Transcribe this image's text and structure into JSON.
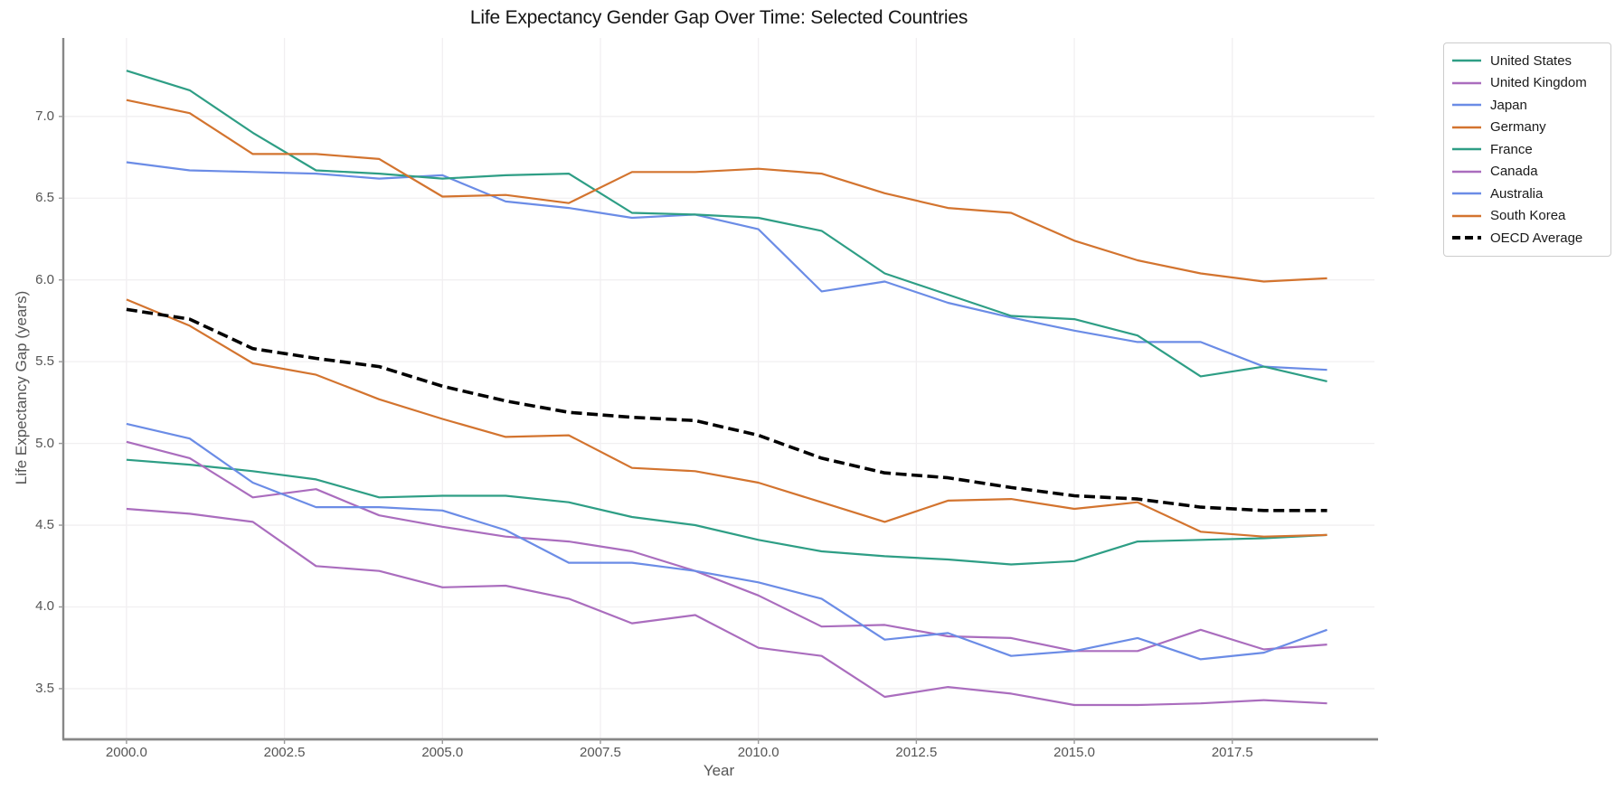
{
  "chart_data": {
    "type": "line",
    "title": "Life Expectancy Gender Gap Over Time: Selected Countries",
    "xlabel": "Year",
    "ylabel": "Life Expectancy Gap (years)",
    "xlim": [
      1999.0,
      2019.75
    ],
    "ylim": [
      3.19,
      7.48
    ],
    "grid": true,
    "legend_position": "outside-upper-right",
    "x_ticks": [
      2000.0,
      2002.5,
      2005.0,
      2007.5,
      2010.0,
      2012.5,
      2015.0,
      2017.5
    ],
    "x_tick_labels": [
      "2000.0",
      "2002.5",
      "2005.0",
      "2007.5",
      "2010.0",
      "2012.5",
      "2015.0",
      "2017.5"
    ],
    "y_ticks": [
      3.5,
      4.0,
      4.5,
      5.0,
      5.5,
      6.0,
      6.5,
      7.0
    ],
    "y_tick_labels": [
      "3.5",
      "4.0",
      "4.5",
      "5.0",
      "5.5",
      "6.0",
      "6.5",
      "7.0"
    ],
    "x": [
      2000,
      2001,
      2002,
      2003,
      2004,
      2005,
      2006,
      2007,
      2008,
      2009,
      2010,
      2011,
      2012,
      2013,
      2014,
      2015,
      2016,
      2017,
      2018,
      2019
    ],
    "series": [
      {
        "name": "United States",
        "color": "#2e9e85",
        "dash": "solid",
        "width": 2.2,
        "values": [
          4.9,
          4.87,
          4.83,
          4.78,
          4.67,
          4.68,
          4.68,
          4.64,
          4.55,
          4.5,
          4.41,
          4.34,
          4.31,
          4.29,
          4.26,
          4.28,
          4.4,
          4.41,
          4.42,
          4.44
        ]
      },
      {
        "name": "United Kingdom",
        "color": "#aa6dbe",
        "dash": "solid",
        "width": 2.2,
        "values": [
          5.01,
          4.91,
          4.67,
          4.72,
          4.56,
          4.49,
          4.43,
          4.4,
          4.34,
          4.22,
          4.07,
          3.88,
          3.89,
          3.82,
          3.81,
          3.73,
          3.73,
          3.86,
          3.74,
          3.77
        ]
      },
      {
        "name": "Japan",
        "color": "#6b8ce6",
        "dash": "solid",
        "width": 2.2,
        "values": [
          6.72,
          6.67,
          6.66,
          6.65,
          6.62,
          6.64,
          6.48,
          6.44,
          6.38,
          6.4,
          6.31,
          5.93,
          5.99,
          5.86,
          5.77,
          5.69,
          5.62,
          5.62,
          5.47,
          5.45
        ]
      },
      {
        "name": "Germany",
        "color": "#d3742f",
        "dash": "solid",
        "width": 2.2,
        "values": [
          5.88,
          5.72,
          5.49,
          5.42,
          5.27,
          5.15,
          5.04,
          5.05,
          4.85,
          4.83,
          4.76,
          4.64,
          4.52,
          4.65,
          4.66,
          4.6,
          4.64,
          4.46,
          4.43,
          4.44
        ]
      },
      {
        "name": "France",
        "color": "#2e9e85",
        "dash": "solid",
        "width": 2.2,
        "values": [
          7.28,
          7.16,
          6.9,
          6.67,
          6.65,
          6.62,
          6.64,
          6.65,
          6.41,
          6.4,
          6.38,
          6.3,
          6.04,
          5.91,
          5.78,
          5.76,
          5.66,
          5.41,
          5.47,
          5.38
        ]
      },
      {
        "name": "Canada",
        "color": "#aa6dbe",
        "dash": "solid",
        "width": 2.2,
        "values": [
          4.6,
          4.57,
          4.52,
          4.25,
          4.22,
          4.12,
          4.13,
          4.05,
          3.9,
          3.95,
          3.75,
          3.7,
          3.45,
          3.51,
          3.47,
          3.4,
          3.4,
          3.41,
          3.43,
          3.41
        ]
      },
      {
        "name": "Australia",
        "color": "#6b8ce6",
        "dash": "solid",
        "width": 2.2,
        "values": [
          5.12,
          5.03,
          4.76,
          4.61,
          4.61,
          4.59,
          4.47,
          4.27,
          4.27,
          4.22,
          4.15,
          4.05,
          3.8,
          3.84,
          3.7,
          3.73,
          3.81,
          3.68,
          3.72,
          3.86
        ]
      },
      {
        "name": "South Korea",
        "color": "#d3742f",
        "dash": "solid",
        "width": 2.2,
        "values": [
          7.1,
          7.02,
          6.77,
          6.77,
          6.74,
          6.51,
          6.52,
          6.47,
          6.66,
          6.66,
          6.68,
          6.65,
          6.53,
          6.44,
          6.41,
          6.24,
          6.12,
          6.04,
          5.99,
          6.01
        ]
      },
      {
        "name": "OECD Average",
        "color": "#000000",
        "dash": "dashed",
        "width": 3.6,
        "values": [
          5.82,
          5.76,
          5.58,
          5.52,
          5.47,
          5.35,
          5.26,
          5.19,
          5.16,
          5.14,
          5.05,
          4.91,
          4.82,
          4.79,
          4.73,
          4.68,
          4.66,
          4.61,
          4.59,
          4.59
        ]
      }
    ],
    "colors": {
      "grid": "#f1eff1",
      "spine": "#878787",
      "tick": "#999999",
      "tick_label": "#555555",
      "title": "#141414",
      "axis_label": "#555555",
      "legend_border": "#cccccc",
      "legend_text": "#1a1a1a"
    }
  }
}
